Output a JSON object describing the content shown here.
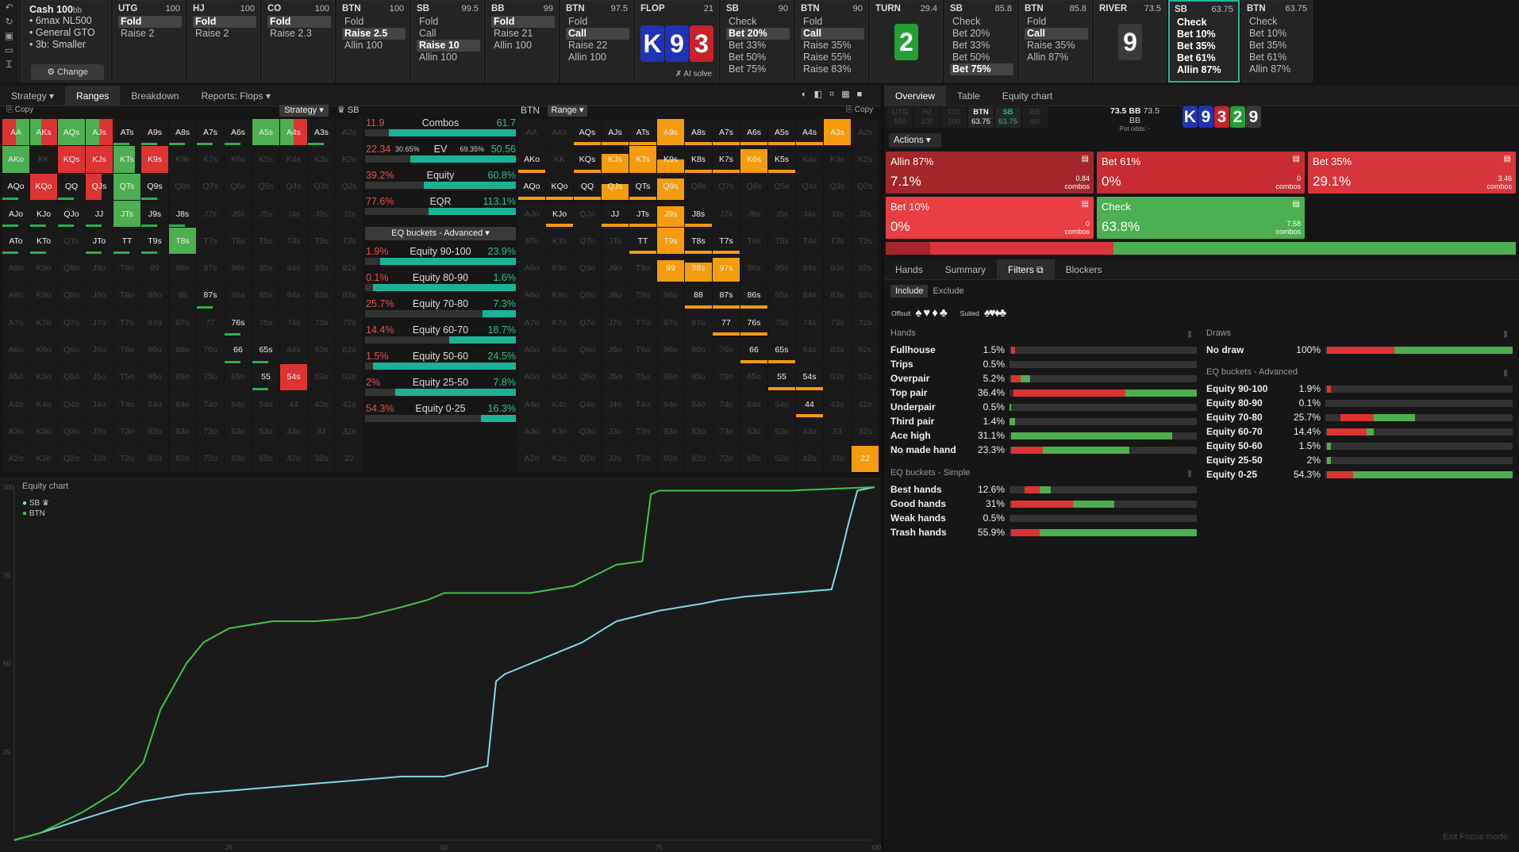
{
  "sidebar": {
    "icons": [
      "undo-icon",
      "refresh-icon",
      "save-icon",
      "car-icon",
      "text-cursor-icon"
    ]
  },
  "cashbox": {
    "title": "Cash",
    "stake": "100",
    "stake_unit": "bb",
    "items": [
      "• 6max NL500",
      "• General GTO",
      "• 3b: Smaller"
    ],
    "change_label": "⚙ Change"
  },
  "strip": [
    {
      "pos": "UTG",
      "stack": "100",
      "items": [
        "Fold",
        "Raise 2"
      ],
      "sel": 0
    },
    {
      "pos": "HJ",
      "stack": "100",
      "items": [
        "Fold",
        "Raise 2"
      ],
      "sel": 0
    },
    {
      "pos": "CO",
      "stack": "100",
      "items": [
        "Fold",
        "Raise 2.3"
      ],
      "sel": 0
    },
    {
      "pos": "BTN",
      "stack": "100",
      "items": [
        "Fold",
        "Raise 2.5",
        "Allin 100"
      ],
      "sel": 1
    },
    {
      "pos": "SB",
      "stack": "99.5",
      "items": [
        "Fold",
        "Call",
        "Raise 10",
        "Allin 100"
      ],
      "sel": 2
    },
    {
      "pos": "BB",
      "stack": "99",
      "items": [
        "Fold",
        "Raise 21",
        "Allin 100"
      ],
      "sel": 0
    },
    {
      "pos": "BTN",
      "stack": "97.5",
      "items": [
        "Fold",
        "Call",
        "Raise 22",
        "Allin 100"
      ],
      "sel": 1
    },
    {
      "pos": "SB",
      "stack": "90",
      "items": [
        "Check",
        "Bet 20%",
        "Bet 33%",
        "Bet 50%",
        "Bet 75%"
      ],
      "sel": 1
    },
    {
      "pos": "BTN",
      "stack": "90",
      "items": [
        "Fold",
        "Call",
        "Raise 35%",
        "Raise 55%",
        "Raise 83%"
      ],
      "sel": 1
    },
    {
      "pos": "SB",
      "stack": "85.8",
      "items": [
        "Check",
        "Bet 20%",
        "Bet 33%",
        "Bet 50%",
        "Bet 75%"
      ],
      "sel": 4
    },
    {
      "pos": "BTN",
      "stack": "85.8",
      "items": [
        "Fold",
        "Call",
        "Raise 35%",
        "Allin 87%"
      ],
      "sel": 1
    },
    {
      "pos": "SB",
      "stack": "63.75",
      "items": [
        "Check",
        "Bet 10%",
        "Bet 35%",
        "Bet 61%",
        "Allin 87%"
      ],
      "sel": -1,
      "active": true
    },
    {
      "pos": "BTN",
      "stack": "63.75",
      "items": [
        "Check",
        "Bet 10%",
        "Bet 35%",
        "Bet 61%",
        "Allin 87%"
      ],
      "sel": -1
    }
  ],
  "flop": {
    "label": "FLOP",
    "pot": "21",
    "cards": [
      "K",
      "9",
      "3"
    ],
    "ai": "✗ AI solve"
  },
  "turn": {
    "label": "TURN",
    "pot": "29.4",
    "card": "2"
  },
  "river": {
    "label": "RIVER",
    "pot": "73.5",
    "card": "9"
  },
  "left_tabs": [
    "Strategy ▾",
    "Ranges",
    "Breakdown",
    "Reports: Flops ▾"
  ],
  "left_tab_active": 1,
  "range_header": {
    "copy": "⎘ Copy",
    "strategy": "Strategy ▾",
    "sb": "♛ SB",
    "btn": "BTN",
    "range": "Range ▾",
    "copy2": "⎘ Copy"
  },
  "hands": [
    "AA",
    "AKs",
    "AQs",
    "AJs",
    "ATs",
    "A9s",
    "A8s",
    "A7s",
    "A6s",
    "A5s",
    "A4s",
    "A3s",
    "A2s",
    "AKo",
    "KK",
    "KQs",
    "KJs",
    "KTs",
    "K9s",
    "K8s",
    "K7s",
    "K6s",
    "K5s",
    "K4s",
    "K3s",
    "K2s",
    "AQo",
    "KQo",
    "QQ",
    "QJs",
    "QTs",
    "Q9s",
    "Q8s",
    "Q7s",
    "Q6s",
    "Q5s",
    "Q4s",
    "Q3s",
    "Q2s",
    "AJo",
    "KJo",
    "QJo",
    "JJ",
    "JTs",
    "J9s",
    "J8s",
    "J7s",
    "J6s",
    "J5s",
    "J4s",
    "J3s",
    "J2s",
    "ATo",
    "KTo",
    "QTo",
    "JTo",
    "TT",
    "T9s",
    "T8s",
    "T7s",
    "T6s",
    "T5s",
    "T4s",
    "T3s",
    "T2s",
    "A9o",
    "K9o",
    "Q9o",
    "J9o",
    "T9o",
    "99",
    "98s",
    "97s",
    "96s",
    "95s",
    "94s",
    "93s",
    "92s",
    "A8o",
    "K8o",
    "Q8o",
    "J8o",
    "T8o",
    "98o",
    "88",
    "87s",
    "86s",
    "85s",
    "84s",
    "83s",
    "82s",
    "A7o",
    "K7o",
    "Q7o",
    "J7o",
    "T7o",
    "97o",
    "87o",
    "77",
    "76s",
    "75s",
    "74s",
    "73s",
    "72s",
    "A6o",
    "K6o",
    "Q6o",
    "J6o",
    "T6o",
    "96o",
    "86o",
    "76o",
    "66",
    "65s",
    "64s",
    "63s",
    "62s",
    "A5o",
    "K5o",
    "Q5o",
    "J5o",
    "T5o",
    "95o",
    "85o",
    "75o",
    "65o",
    "55",
    "54s",
    "53s",
    "52s",
    "A4o",
    "K4o",
    "Q4o",
    "J4o",
    "T4o",
    "94o",
    "84o",
    "74o",
    "64o",
    "54o",
    "44",
    "43s",
    "42s",
    "A3o",
    "K3o",
    "Q3o",
    "J3o",
    "T3o",
    "93o",
    "83o",
    "73o",
    "63o",
    "53o",
    "43o",
    "33",
    "32s",
    "A2o",
    "K2o",
    "Q2o",
    "J2o",
    "T2o",
    "92o",
    "82o",
    "72o",
    "62o",
    "52o",
    "42o",
    "32o",
    "22"
  ],
  "sb_on": {
    "AA": [
      [
        "r",
        0.5
      ],
      [
        "g",
        0.5
      ]
    ],
    "AKs": [
      [
        "g",
        0.4
      ],
      [
        "r",
        0.6
      ]
    ],
    "AQs": [
      [
        "g",
        1
      ]
    ],
    "AJs": [
      [
        "g",
        0.5
      ],
      [
        "r",
        0.5
      ]
    ],
    "ATs": [],
    "A9s": [],
    "A8s": [],
    "A7s": [],
    "A6s": [],
    "A5s": [
      [
        "g",
        1
      ]
    ],
    "A4s": [
      [
        "g",
        0.5
      ],
      [
        "r",
        0.5
      ]
    ],
    "A3s": [],
    "AKo": [
      [
        "g",
        1
      ]
    ],
    "KQs": [
      [
        "r",
        1
      ]
    ],
    "KJs": [
      [
        "r",
        1
      ]
    ],
    "KTs": [
      [
        "g",
        0.8
      ]
    ],
    "K9s": [
      [
        "r",
        1
      ]
    ],
    "AQo": [],
    "KQo": [
      [
        "r",
        1
      ]
    ],
    "QQ": [],
    "QJs": [
      [
        "r",
        0.6
      ]
    ],
    "QTs": [
      [
        "g",
        1
      ]
    ],
    "Q9s": [],
    "AJo": [],
    "KJo": [],
    "QJo": [],
    "JJ": [],
    "JTs": [
      [
        "g",
        1
      ]
    ],
    "J9s": [],
    "J8s": [],
    "ATo": [],
    "KTo": [],
    "JTo": [],
    "TT": [],
    "T9s": [],
    "T8s": [
      [
        "g",
        1
      ]
    ],
    "87s": [],
    "76s": [],
    "66": [],
    "65s": [],
    "55": [],
    "54s": [
      [
        "r",
        1
      ]
    ]
  },
  "btn_on": {
    "AQs": 0,
    "AJs": 0,
    "ATs": 0,
    "A9s": 1,
    "A8s": 0,
    "A7s": 0,
    "A6s": 0,
    "A5s": 0,
    "A4s": 0,
    "A3s": 1,
    "AKo": 0,
    "KQs": 0,
    "KJs": 0.7,
    "KTs": 1,
    "K9s": 0.5,
    "K8s": 0,
    "K7s": 0,
    "K6s": 0.9,
    "K5s": 0,
    "AQo": 0,
    "KQo": 0,
    "QQ": 0,
    "QJs": 0.6,
    "QTs": 0,
    "Q9s": 0.8,
    "KJo": 0,
    "JJ": 0,
    "JTs": 0,
    "J9s": 0.8,
    "J8s": 0,
    "TT": 0,
    "T9s": 1,
    "T8s": 0,
    "T7s": 0,
    "99": 0.8,
    "98s": 0.7,
    "97s": 0.9,
    "88": 0,
    "87s": 0,
    "86s": 0,
    "77": 0,
    "76s": 0,
    "66": 0,
    "65s": 0,
    "55": 0,
    "54s": 0,
    "44": 0,
    "22": 1
  },
  "mid_rows": [
    {
      "l": "11.9",
      "c": "Combos",
      "r": "61.7",
      "p": 0.84
    },
    {
      "l": "22.34",
      "lp": "30.65%",
      "c": "EV",
      "rp": "69.35%",
      "r": "50.56",
      "p": 0.7
    },
    {
      "l": "39.2%",
      "c": "Equity",
      "r": "60.8%",
      "p": 0.61
    },
    {
      "l": "77.6%",
      "c": "EQR",
      "r": "113.1%",
      "p": 0.58
    }
  ],
  "eq_select": "EQ buckets - Advanced ▾",
  "eq_rows": [
    {
      "l": "1.9%",
      "c": "Equity 90-100",
      "r": "23.9%",
      "p": 0.9
    },
    {
      "l": "0.1%",
      "c": "Equity 80-90",
      "r": "1.6%",
      "p": 0.95
    },
    {
      "l": "25.7%",
      "c": "Equity 70-80",
      "r": "7.3%",
      "p": 0.22
    },
    {
      "l": "14.4%",
      "c": "Equity 60-70",
      "r": "18.7%",
      "p": 0.44
    },
    {
      "l": "1.5%",
      "c": "Equity 50-60",
      "r": "24.5%",
      "p": 0.95
    },
    {
      "l": "2%",
      "c": "Equity 25-50",
      "r": "7.8%",
      "p": 0.8
    },
    {
      "l": "54.3%",
      "c": "Equity 0-25",
      "r": "16.3%",
      "p": 0.23
    }
  ],
  "equity_chart": {
    "title": "Equity chart",
    "legend": [
      "SB ♛",
      "BTN"
    ],
    "ticks_y": [
      "100",
      "75",
      "50",
      "25"
    ],
    "ticks_x": [
      "25",
      "50",
      "75",
      "100"
    ],
    "exit": "Exit Focus mode"
  },
  "chart_data": {
    "type": "line",
    "title": "Equity chart",
    "xlim": [
      0,
      100
    ],
    "ylim": [
      0,
      100
    ],
    "series": [
      {
        "name": "SB ♛",
        "color": "#7fd8e6",
        "x": [
          0,
          3,
          8,
          12,
          15,
          20,
          25,
          30,
          35,
          40,
          45,
          50,
          55,
          56,
          57,
          60,
          63,
          66,
          68,
          70,
          75,
          80,
          82,
          85,
          90,
          95,
          96,
          97,
          98,
          100
        ],
        "y": [
          0,
          2,
          6,
          9,
          11,
          13,
          14,
          15,
          16,
          17,
          18,
          18,
          21,
          45,
          47,
          50,
          53,
          56,
          59,
          62,
          65,
          67,
          68,
          69,
          70,
          71,
          80,
          90,
          99,
          100
        ]
      },
      {
        "name": "BTN",
        "color": "#3fc54a",
        "x": [
          0,
          3,
          8,
          12,
          15,
          17,
          20,
          22,
          25,
          30,
          35,
          40,
          45,
          48,
          50,
          55,
          60,
          65,
          70,
          73,
          74,
          75,
          77,
          78,
          80,
          90,
          100
        ],
        "y": [
          0,
          2,
          8,
          14,
          22,
          37,
          50,
          56,
          60,
          62,
          62,
          63,
          66,
          68,
          70,
          70,
          70,
          72,
          78,
          79,
          98,
          99,
          99,
          99,
          99,
          99,
          100
        ]
      }
    ]
  },
  "right_tabs": [
    "Overview",
    "Table",
    "Equity chart"
  ],
  "right_tab_active": 0,
  "stacks": [
    {
      "p": "UTG",
      "v": "100",
      "s": "dim"
    },
    {
      "p": "HJ",
      "v": "100",
      "s": "dim"
    },
    {
      "p": "CO",
      "v": "100",
      "s": "dim"
    },
    {
      "p": "BTN",
      "v": "63.75",
      "s": "bold"
    },
    {
      "p": "SB",
      "v": "63.75",
      "s": "teal"
    },
    {
      "p": "BB",
      "v": "99",
      "s": "dim"
    }
  ],
  "pot": {
    "main": "73.5 BB",
    "side": "73.5 BB",
    "odds": "Pot odds: -"
  },
  "board": [
    {
      "r": "K",
      "c": "#1e34b6"
    },
    {
      "r": "9",
      "c": "#1e34b6"
    },
    {
      "r": "3",
      "c": "#c8222a"
    },
    {
      "r": "2",
      "c": "#22a034"
    },
    {
      "r": "9",
      "c": "#3a3a3a"
    }
  ],
  "actions_label": "Actions ▾",
  "action_tiles": [
    {
      "n": "Allin 87%",
      "p": "7.1%",
      "cb": "0.84",
      "u": "combos",
      "bg": "#a3262a"
    },
    {
      "n": "Bet 61%",
      "p": "0%",
      "cb": "0",
      "u": "combos",
      "bg": "#c82c31"
    },
    {
      "n": "Bet 35%",
      "p": "29.1%",
      "cb": "3.46",
      "u": "combos",
      "bg": "#d8363a"
    },
    {
      "n": "Bet 10%",
      "p": "0%",
      "cb": "0",
      "u": "combos",
      "bg": "#ea3e42"
    },
    {
      "n": "Check",
      "p": "63.8%",
      "cb": "7.58",
      "u": "combos",
      "bg": "#4caf50"
    }
  ],
  "action_bar": [
    {
      "c": "#a3262a",
      "w": 0.071
    },
    {
      "c": "#d8363a",
      "w": 0.291
    },
    {
      "c": "#4caf50",
      "w": 0.638
    }
  ],
  "sub_tabs": [
    "Hands",
    "Summary",
    "Filters ⧉",
    "Blockers"
  ],
  "sub_tab_active": 2,
  "include_exclude": [
    "Include",
    "Exclude"
  ],
  "suits": {
    "offsuit": "Offsuit",
    "offsuit_glyphs": "♠♥♦♣",
    "suited": "Suited",
    "suited_glyphs": "♠♥♦♣"
  },
  "hands_sec": {
    "title": "Hands",
    "rows": [
      {
        "l": "Fullhouse",
        "v": "1.5%",
        "segs": [
          [
            "#d33",
            0.01,
            0.02
          ]
        ]
      },
      {
        "l": "Trips",
        "v": "0.5%",
        "segs": []
      },
      {
        "l": "Overpair",
        "v": "5.2%",
        "segs": [
          [
            "#d33",
            0.01,
            0.05
          ],
          [
            "#4caf50",
            0.06,
            0.05
          ]
        ]
      },
      {
        "l": "Top pair",
        "v": "36.4%",
        "segs": [
          [
            "#d33",
            0.02,
            0.6
          ],
          [
            "#4caf50",
            0.62,
            0.38
          ]
        ]
      },
      {
        "l": "Underpair",
        "v": "0.5%",
        "segs": [
          [
            "#4caf50",
            0.0,
            0.01
          ]
        ]
      },
      {
        "l": "Third pair",
        "v": "1.4%",
        "segs": [
          [
            "#4caf50",
            0.0,
            0.03
          ]
        ]
      },
      {
        "l": "Ace high",
        "v": "31.1%",
        "segs": [
          [
            "#4caf50",
            0.01,
            0.86
          ]
        ]
      },
      {
        "l": "No made hand",
        "v": "23.3%",
        "segs": [
          [
            "#d33",
            0.01,
            0.17
          ],
          [
            "#4caf50",
            0.18,
            0.46
          ]
        ]
      }
    ]
  },
  "simple_sec": {
    "title": "EQ buckets - Simple",
    "rows": [
      {
        "l": "Best hands",
        "v": "12.6%",
        "segs": [
          [
            "#d33",
            0.08,
            0.08
          ],
          [
            "#4caf50",
            0.16,
            0.06
          ]
        ]
      },
      {
        "l": "Good hands",
        "v": "31%",
        "segs": [
          [
            "#d33",
            0.01,
            0.33
          ],
          [
            "#4caf50",
            0.34,
            0.22
          ]
        ]
      },
      {
        "l": "Weak hands",
        "v": "0.5%",
        "segs": []
      },
      {
        "l": "Trash hands",
        "v": "55.9%",
        "segs": [
          [
            "#d33",
            0.01,
            0.15
          ],
          [
            "#4caf50",
            0.16,
            0.84
          ]
        ]
      }
    ]
  },
  "draws_sec": {
    "title": "Draws",
    "rows": [
      {
        "l": "No draw",
        "v": "100%",
        "segs": [
          [
            "#d33",
            0.01,
            0.36
          ],
          [
            "#4caf50",
            0.37,
            0.63
          ]
        ]
      }
    ]
  },
  "adv_sec": {
    "title": "EQ buckets - Advanced",
    "rows": [
      {
        "l": "Equity 90-100",
        "v": "1.9%",
        "segs": [
          [
            "#d33",
            0.01,
            0.02
          ]
        ]
      },
      {
        "l": "Equity 80-90",
        "v": "0.1%",
        "segs": []
      },
      {
        "l": "Equity 70-80",
        "v": "25.7%",
        "segs": [
          [
            "#d33",
            0.08,
            0.18
          ],
          [
            "#4caf50",
            0.26,
            0.22
          ]
        ]
      },
      {
        "l": "Equity 60-70",
        "v": "14.4%",
        "segs": [
          [
            "#d33",
            0.01,
            0.21
          ],
          [
            "#4caf50",
            0.22,
            0.04
          ]
        ]
      },
      {
        "l": "Equity 50-60",
        "v": "1.5%",
        "segs": [
          [
            "#4caf50",
            0.01,
            0.02
          ]
        ]
      },
      {
        "l": "Equity 25-50",
        "v": "2%",
        "segs": [
          [
            "#4caf50",
            0.01,
            0.02
          ]
        ]
      },
      {
        "l": "Equity 0-25",
        "v": "54.3%",
        "segs": [
          [
            "#d33",
            0.01,
            0.14
          ],
          [
            "#4caf50",
            0.15,
            0.85
          ]
        ]
      }
    ]
  }
}
